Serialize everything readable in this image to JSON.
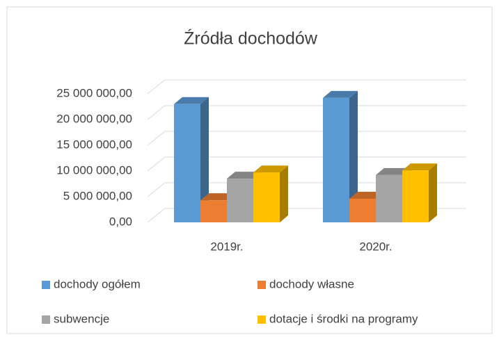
{
  "chart_data": {
    "type": "bar3d",
    "title": "Źródła dochodów",
    "categories": [
      "2019r.",
      "2020r."
    ],
    "series": [
      {
        "name": "dochody ogółem",
        "color": "#5b9bd5",
        "values": [
          23000000,
          24200000
        ]
      },
      {
        "name": "dochody własne",
        "color": "#ed7d31",
        "values": [
          4300000,
          4600000
        ]
      },
      {
        "name": "subwencje",
        "color": "#a5a5a5",
        "values": [
          8500000,
          9200000
        ]
      },
      {
        "name": "dotacje i środki na programy",
        "color": "#ffc000",
        "values": [
          9700000,
          10100000
        ]
      }
    ],
    "ylim": [
      0,
      25000000
    ],
    "yticks": [
      {
        "value": 0,
        "label": "0,00"
      },
      {
        "value": 5000000,
        "label": "5 000 000,00"
      },
      {
        "value": 10000000,
        "label": "10 000 000,00"
      },
      {
        "value": 15000000,
        "label": "15 000 000,00"
      },
      {
        "value": 20000000,
        "label": "20 000 000,00"
      },
      {
        "value": 25000000,
        "label": "25 000 000,00"
      }
    ],
    "grid": true
  }
}
